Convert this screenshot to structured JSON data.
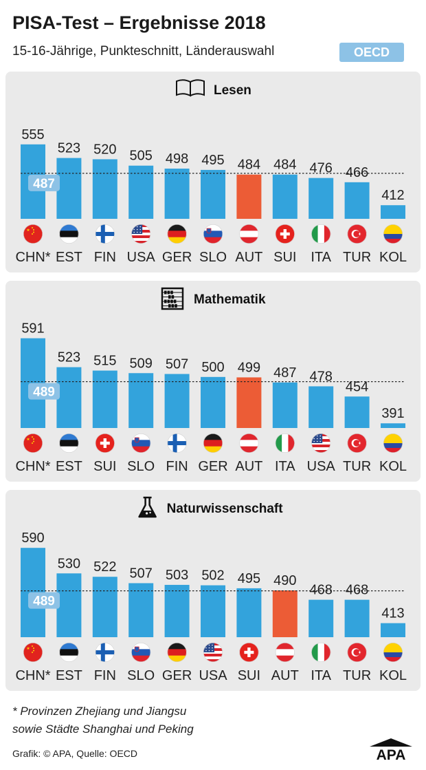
{
  "header": {
    "title": "PISA-Test – Ergebnisse 2018",
    "subtitle": "15-16-Jährige, Punkteschnitt, Länderauswahl",
    "badge": "OECD"
  },
  "colors": {
    "bar": "#33a3dc",
    "highlight": "#ec5c36",
    "avg_label_bg": "#8dc2e6",
    "panel": "#eaeaea"
  },
  "chart_data": [
    {
      "type": "bar",
      "title": "Lesen",
      "icon": "book-icon",
      "categories": [
        "CHN*",
        "EST",
        "FIN",
        "USA",
        "GER",
        "SLO",
        "AUT",
        "SUI",
        "ITA",
        "TUR",
        "KOL"
      ],
      "values": [
        555,
        523,
        520,
        505,
        498,
        495,
        484,
        484,
        476,
        466,
        412
      ],
      "highlight": "AUT",
      "average": 487,
      "ylim": [
        0,
        600
      ]
    },
    {
      "type": "bar",
      "title": "Mathematik",
      "icon": "abacus-icon",
      "categories": [
        "CHN*",
        "EST",
        "SUI",
        "SLO",
        "FIN",
        "GER",
        "AUT",
        "ITA",
        "USA",
        "TUR",
        "KOL"
      ],
      "values": [
        591,
        523,
        515,
        509,
        507,
        500,
        499,
        487,
        478,
        454,
        391
      ],
      "highlight": "AUT",
      "average": 489,
      "ylim": [
        0,
        600
      ]
    },
    {
      "type": "bar",
      "title": "Naturwissenschaft",
      "icon": "flask-icon",
      "categories": [
        "CHN*",
        "EST",
        "FIN",
        "SLO",
        "GER",
        "USA",
        "SUI",
        "AUT",
        "ITA",
        "TUR",
        "KOL"
      ],
      "values": [
        590,
        530,
        522,
        507,
        503,
        502,
        495,
        490,
        468,
        468,
        413
      ],
      "highlight": "AUT",
      "average": 489,
      "ylim": [
        0,
        600
      ]
    }
  ],
  "footnote": {
    "line1": "* Provinzen Zhejiang und Jiangsu",
    "line2": "sowie Städte Shanghai und Peking"
  },
  "credit": "Grafik: © APA, Quelle: OECD",
  "logo": "APA"
}
